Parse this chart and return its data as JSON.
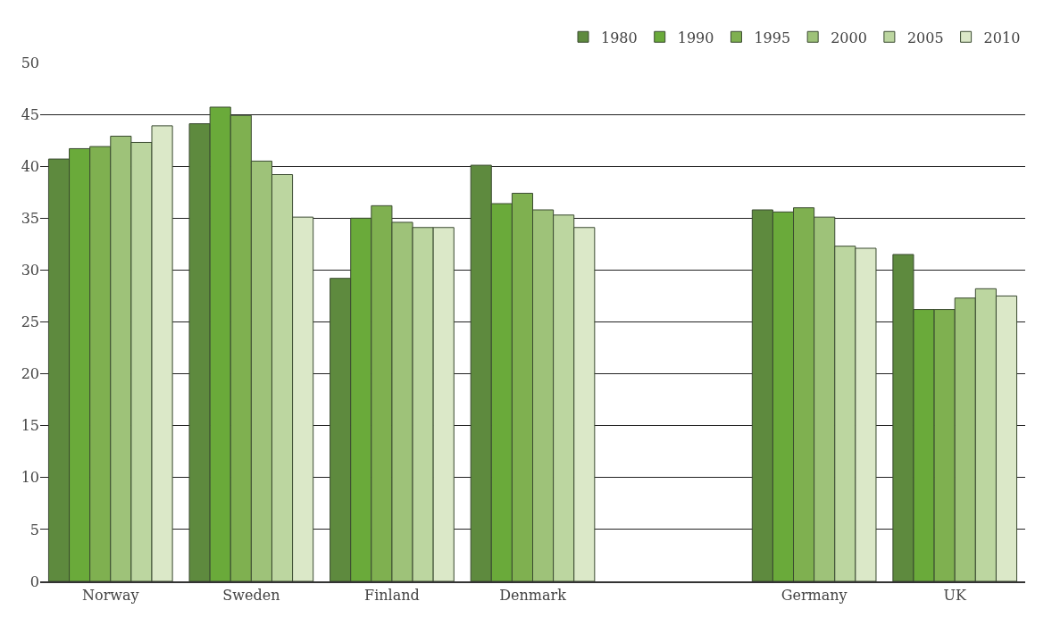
{
  "chart_data": {
    "type": "bar",
    "categories": [
      "Norway",
      "Sweden",
      "Finland",
      "Denmark",
      null,
      "Germany",
      "UK"
    ],
    "series": [
      {
        "name": "1980",
        "color": "#5e8a3e",
        "values": [
          40.7,
          44.1,
          29.2,
          40.1,
          null,
          35.8,
          31.5
        ]
      },
      {
        "name": "1990",
        "color": "#6aaa3a",
        "values": [
          41.7,
          45.7,
          35.0,
          36.4,
          null,
          35.6,
          26.2
        ]
      },
      {
        "name": "1995",
        "color": "#7fb050",
        "values": [
          41.9,
          44.9,
          36.2,
          37.4,
          null,
          36.0,
          26.2
        ]
      },
      {
        "name": "2000",
        "color": "#9ec279",
        "values": [
          42.9,
          40.5,
          34.6,
          35.8,
          null,
          35.1,
          27.3
        ]
      },
      {
        "name": "2005",
        "color": "#bcd6a0",
        "values": [
          42.3,
          39.2,
          34.1,
          35.3,
          null,
          32.3,
          28.2
        ]
      },
      {
        "name": "2010",
        "color": "#dbe8c8",
        "values": [
          43.9,
          35.1,
          34.1,
          34.1,
          null,
          32.1,
          27.5
        ]
      }
    ],
    "ylim": [
      0,
      50
    ],
    "yticks": [
      0,
      5,
      10,
      15,
      20,
      25,
      30,
      35,
      40,
      45,
      50
    ],
    "grid": "y",
    "legend": "top right"
  }
}
